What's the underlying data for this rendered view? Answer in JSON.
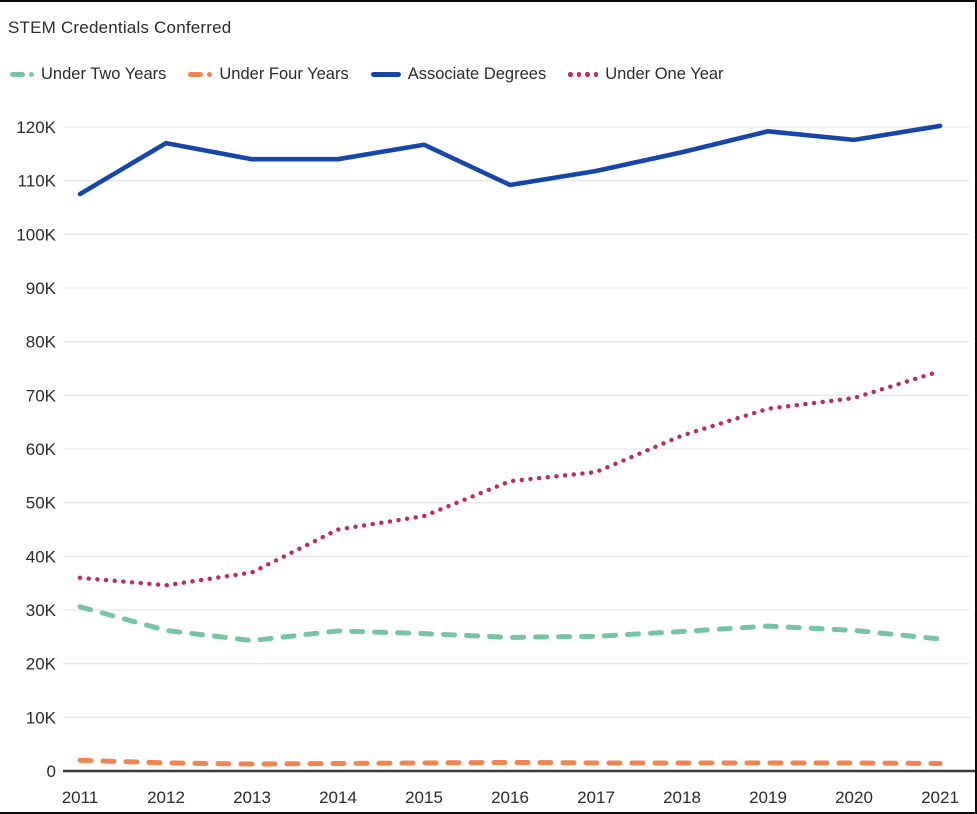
{
  "header": {
    "title": "STEM Credentials Conferred"
  },
  "colors": {
    "under_two_years": "#75C4A2",
    "under_four_years": "#F08552",
    "associate_degrees": "#1547A8",
    "under_one_year": "#B23063",
    "gridline": "#E8E8E8",
    "axis_line": "#3a3a3a",
    "label_text": "#2b2b2b",
    "frame_border": "#0a0a0a"
  },
  "legend": {
    "items": [
      {
        "label": "Under Two Years",
        "color": "#75C4A2",
        "style": "dash-dot"
      },
      {
        "label": "Under Four Years",
        "color": "#F08552",
        "style": "dash-dot"
      },
      {
        "label": "Associate Degrees",
        "color": "#1547A8",
        "style": "solid"
      },
      {
        "label": "Under One Year",
        "color": "#B23063",
        "style": "dotted"
      }
    ]
  },
  "chart_data": {
    "type": "line",
    "title": "STEM Credentials Conferred",
    "unit": "thousands of credentials (values_k are in K)",
    "x": [
      2011,
      2012,
      2013,
      2014,
      2015,
      2016,
      2017,
      2018,
      2019,
      2020,
      2021
    ],
    "series": [
      {
        "name": "Under Two Years",
        "color": "#75C4A2",
        "line_style": "dashed",
        "values_k": [
          30.6,
          26.2,
          24.3,
          26.1,
          25.6,
          24.9,
          25.1,
          26.0,
          27.0,
          26.2,
          24.6
        ]
      },
      {
        "name": "Under Four Years",
        "color": "#F08552",
        "line_style": "dashed",
        "values_k": [
          2.0,
          1.5,
          1.3,
          1.4,
          1.5,
          1.6,
          1.5,
          1.5,
          1.5,
          1.5,
          1.4
        ]
      },
      {
        "name": "Associate Degrees",
        "color": "#1547A8",
        "line_style": "solid",
        "values_k": [
          107.5,
          117.0,
          114.0,
          114.0,
          116.7,
          109.2,
          111.8,
          115.3,
          119.2,
          117.6,
          120.2
        ]
      },
      {
        "name": "Under One Year",
        "color": "#B23063",
        "line_style": "dotted",
        "values_k": [
          36.0,
          34.6,
          37.0,
          45.0,
          47.5,
          54.0,
          55.7,
          62.5,
          67.5,
          69.5,
          74.5
        ]
      }
    ],
    "ylim_k": [
      0,
      120
    ],
    "ytick_labels": [
      "0",
      "10K",
      "20K",
      "30K",
      "40K",
      "50K",
      "60K",
      "70K",
      "80K",
      "90K",
      "100K",
      "110K",
      "120K"
    ],
    "xtick_labels": [
      "2011",
      "2012",
      "2013",
      "2014",
      "2015",
      "2016",
      "2017",
      "2018",
      "2019",
      "2020",
      "2021"
    ],
    "grid": true,
    "legend_position": "top-left"
  }
}
